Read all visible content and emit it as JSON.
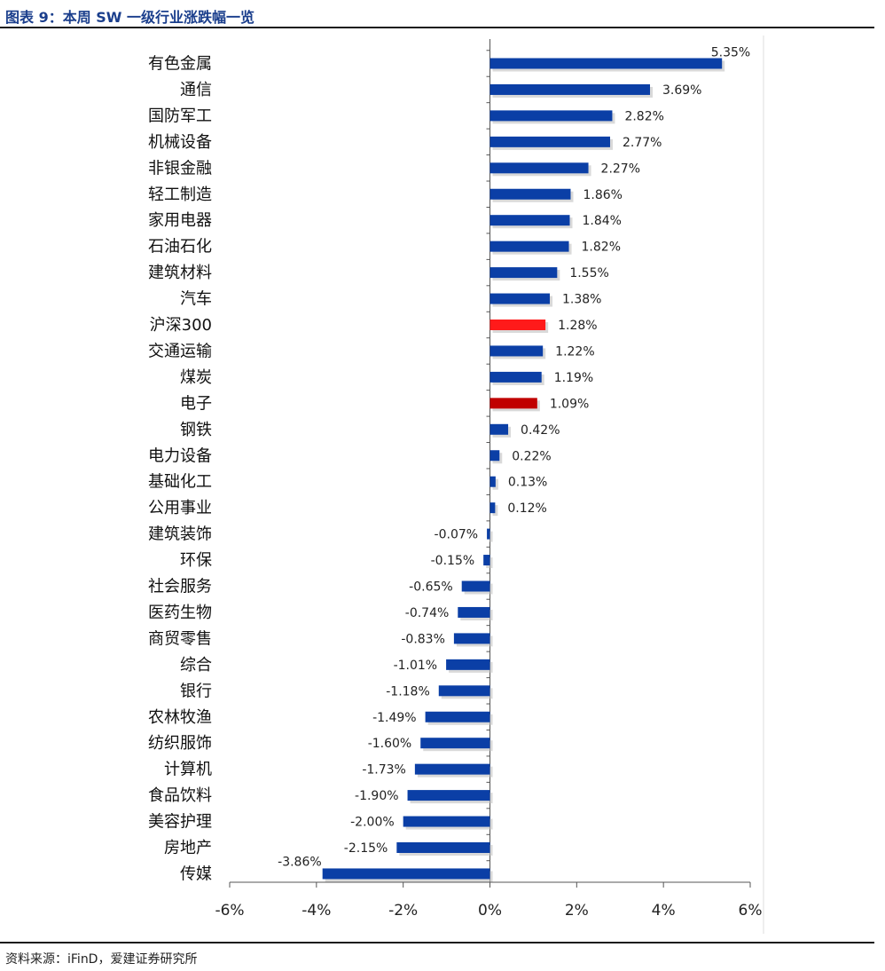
{
  "header": {
    "title": "图表 9：本周 SW 一级行业涨跌幅一览"
  },
  "footer": {
    "source": "资料来源：iFinD，爱建证券研究所"
  },
  "colors": {
    "bar": "#0b3fa6",
    "highlight": "#ff1a1a",
    "highlight_dark": "#c00000",
    "axis": "#555555",
    "title": "#1a3e8c"
  },
  "chart_data": {
    "type": "bar",
    "orientation": "horizontal",
    "categories": [
      "有色金属",
      "通信",
      "国防军工",
      "机械设备",
      "非银金融",
      "轻工制造",
      "家用电器",
      "石油石化",
      "建筑材料",
      "汽车",
      "沪深300",
      "交通运输",
      "煤炭",
      "电子",
      "钢铁",
      "电力设备",
      "基础化工",
      "公用事业",
      "建筑装饰",
      "环保",
      "社会服务",
      "医药生物",
      "商贸零售",
      "综合",
      "银行",
      "农林牧渔",
      "纺织服饰",
      "计算机",
      "食品饮料",
      "美容护理",
      "房地产",
      "传媒"
    ],
    "values": [
      5.35,
      3.69,
      2.82,
      2.77,
      2.27,
      1.86,
      1.84,
      1.82,
      1.55,
      1.38,
      1.28,
      1.22,
      1.19,
      1.09,
      0.42,
      0.22,
      0.13,
      0.12,
      -0.07,
      -0.15,
      -0.65,
      -0.74,
      -0.83,
      -1.01,
      -1.18,
      -1.49,
      -1.6,
      -1.73,
      -1.9,
      -2.0,
      -2.15,
      -3.86
    ],
    "value_labels": [
      "5.35%",
      "3.69%",
      "2.82%",
      "2.77%",
      "2.27%",
      "1.86%",
      "1.84%",
      "1.82%",
      "1.55%",
      "1.38%",
      "1.28%",
      "1.22%",
      "1.19%",
      "1.09%",
      "0.42%",
      "0.22%",
      "0.13%",
      "0.12%",
      "-0.07%",
      "-0.15%",
      "-0.65%",
      "-0.74%",
      "-0.83%",
      "-1.01%",
      "-1.18%",
      "-1.49%",
      "-1.60%",
      "-1.73%",
      "-1.90%",
      "-2.00%",
      "-2.15%",
      "-3.86%"
    ],
    "highlights": {
      "沪深300": "#ff1a1a",
      "电子": "#c00000"
    },
    "xlim": [
      -6,
      6
    ],
    "xticks": [
      -6,
      -4,
      -2,
      0,
      2,
      4,
      6
    ],
    "xtick_labels": [
      "-6%",
      "-4%",
      "-2%",
      "0%",
      "2%",
      "4%",
      "6%"
    ],
    "grid": false,
    "legend": "none"
  }
}
